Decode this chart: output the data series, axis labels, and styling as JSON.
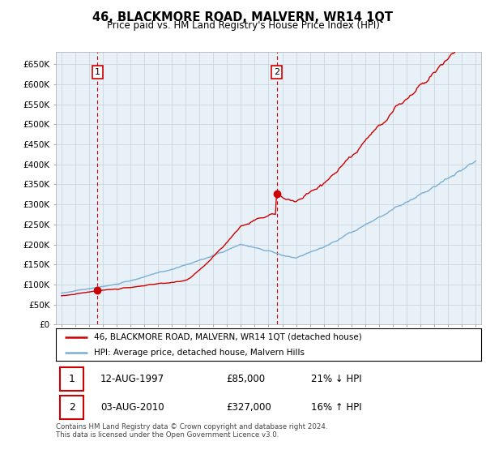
{
  "title": "46, BLACKMORE ROAD, MALVERN, WR14 1QT",
  "subtitle": "Price paid vs. HM Land Registry's House Price Index (HPI)",
  "legend_line1": "46, BLACKMORE ROAD, MALVERN, WR14 1QT (detached house)",
  "legend_line2": "HPI: Average price, detached house, Malvern Hills",
  "sale1_date": "12-AUG-1997",
  "sale1_price": "£85,000",
  "sale1_hpi": "21% ↓ HPI",
  "sale1_year": 1997.62,
  "sale1_value": 85000,
  "sale2_date": "03-AUG-2010",
  "sale2_price": "£327,000",
  "sale2_hpi": "16% ↑ HPI",
  "sale2_year": 2010.59,
  "sale2_value": 327000,
  "property_color": "#cc0000",
  "hpi_color": "#7bafd4",
  "vline_color": "#cc0000",
  "bg_chart_color": "#e8f0f8",
  "yticks": [
    0,
    50000,
    100000,
    150000,
    200000,
    250000,
    300000,
    350000,
    400000,
    450000,
    500000,
    550000,
    600000,
    650000
  ],
  "ylim_max": 680000,
  "footer": "Contains HM Land Registry data © Crown copyright and database right 2024.\nThis data is licensed under the Open Government Licence v3.0.",
  "background_color": "#ffffff",
  "grid_color": "#c8d0d8"
}
